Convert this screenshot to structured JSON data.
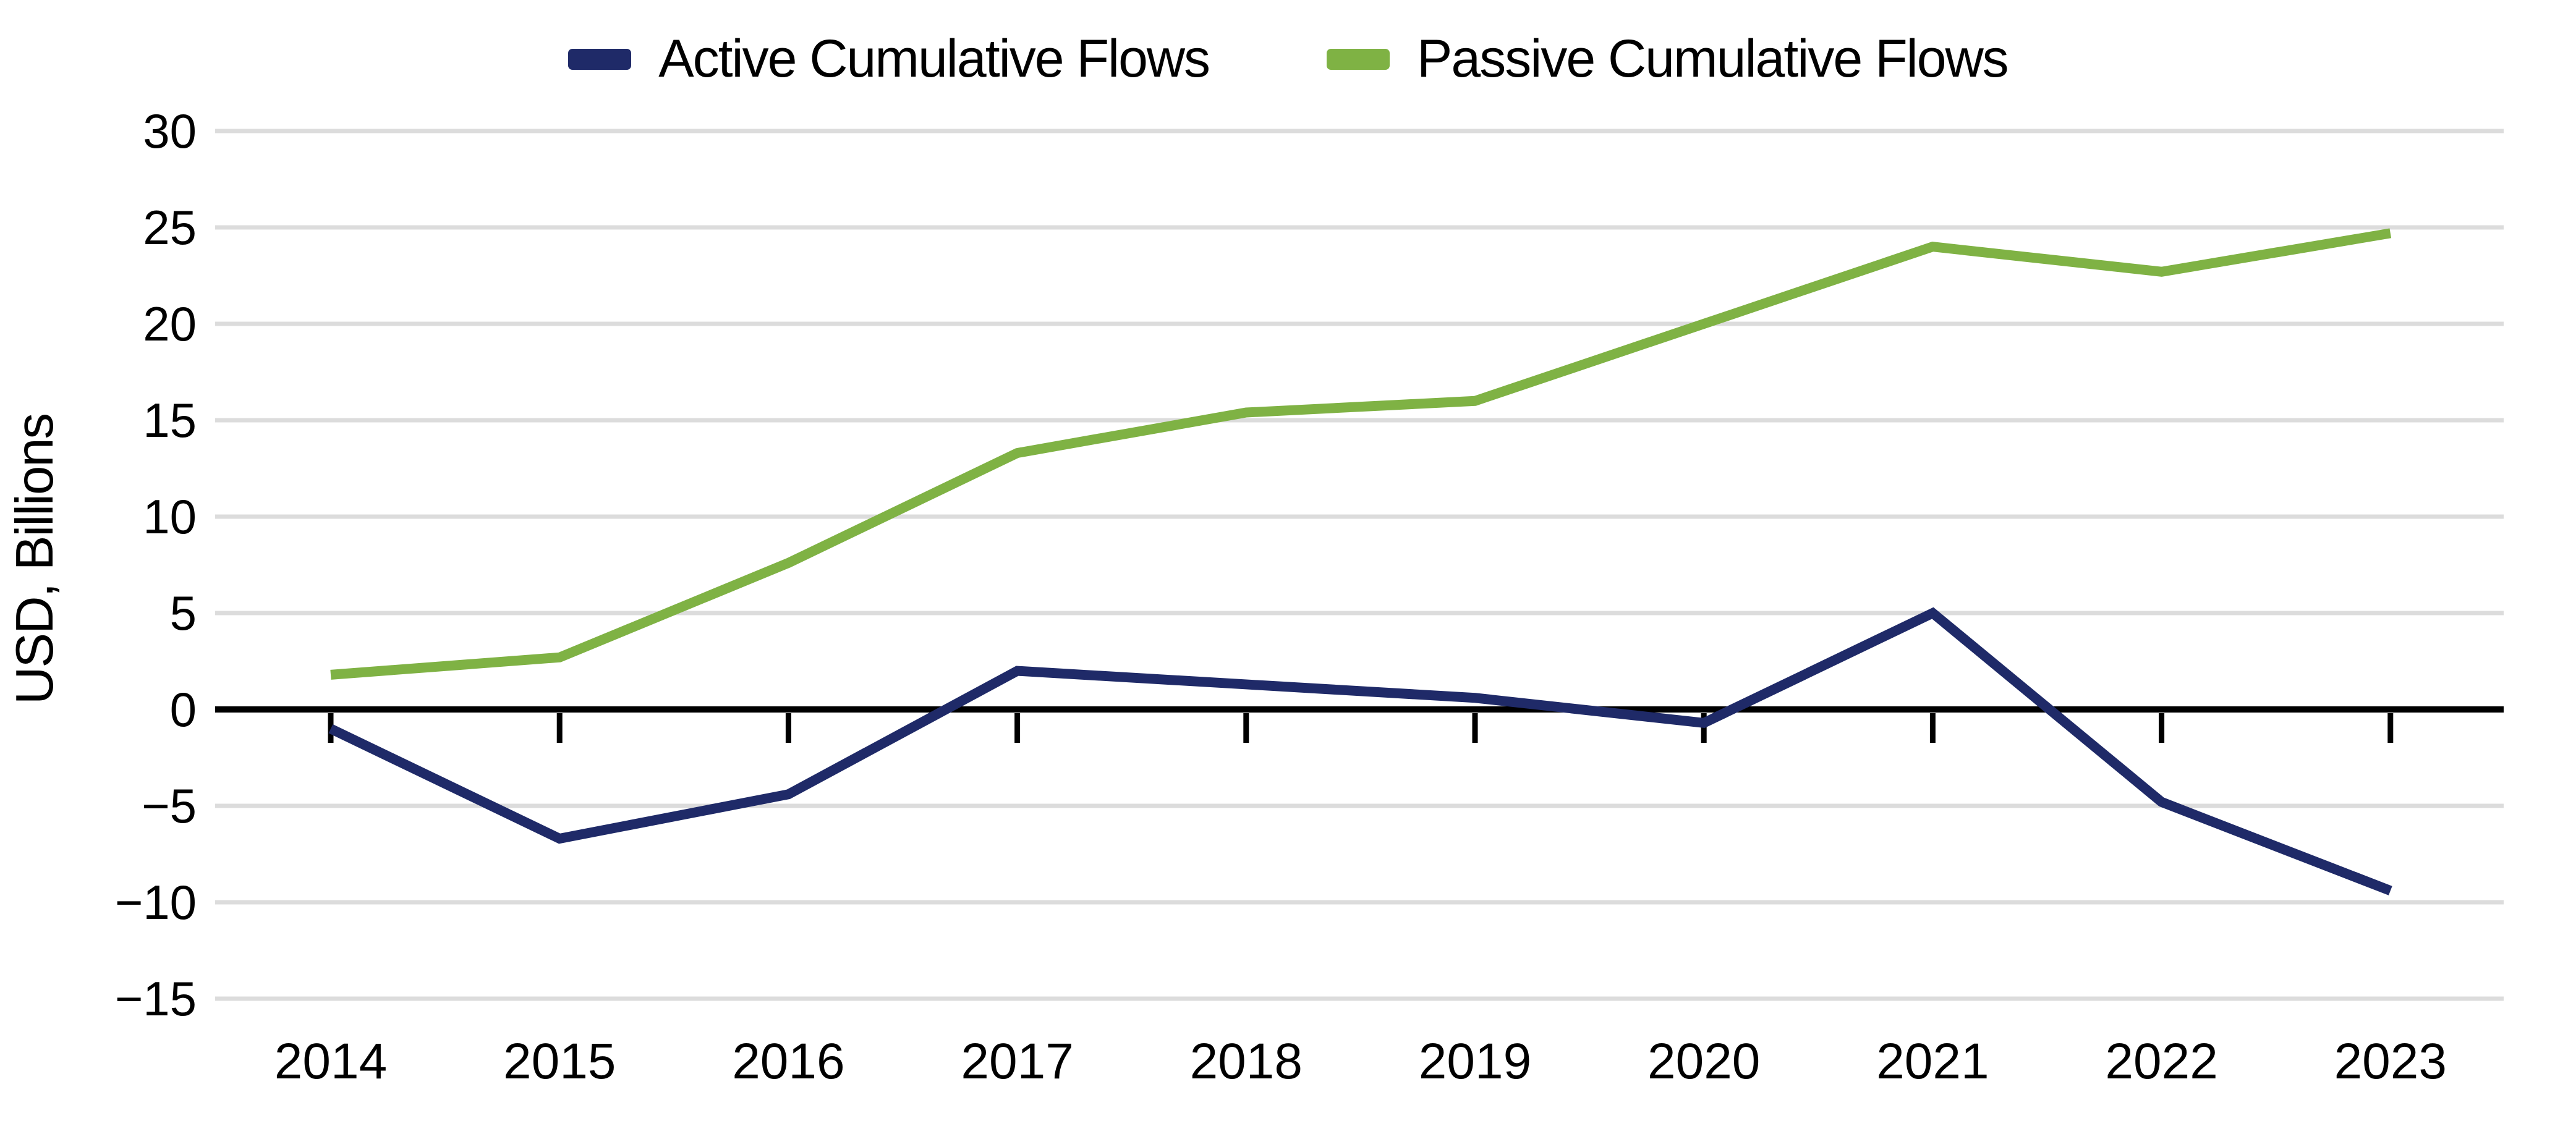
{
  "legend": {
    "items": [
      {
        "label": "Active Cumulative Flows",
        "color": "#1F2A68"
      },
      {
        "label": "Passive Cumulative Flows",
        "color": "#7FB244"
      }
    ]
  },
  "chart_data": {
    "type": "line",
    "title": "",
    "xlabel": "",
    "ylabel": "USD, Billions",
    "categories": [
      "2014",
      "2015",
      "2016",
      "2017",
      "2018",
      "2019",
      "2020",
      "2021",
      "2022",
      "2023"
    ],
    "series": [
      {
        "name": "Active Cumulative Flows",
        "color": "#1F2A68",
        "values": [
          -1.0,
          -6.7,
          -4.4,
          2.0,
          1.3,
          0.6,
          -0.7,
          5.0,
          -4.8,
          -9.4
        ]
      },
      {
        "name": "Passive Cumulative Flows",
        "color": "#7FB244",
        "values": [
          1.8,
          2.7,
          7.6,
          13.3,
          15.4,
          16.0,
          20.0,
          24.0,
          22.7,
          24.7
        ]
      }
    ],
    "ylim": [
      -15,
      30
    ],
    "ytick_step": 5,
    "yticks": [
      "30",
      "25",
      "20",
      "15",
      "10",
      "5",
      "0",
      "−5",
      "−10",
      "−15"
    ],
    "grid": "horizontal",
    "legend_position": "top-center",
    "colors": {
      "gridline": "#DCDCDC",
      "zero_line": "#000000",
      "tick": "#000000",
      "text": "#000000"
    }
  }
}
